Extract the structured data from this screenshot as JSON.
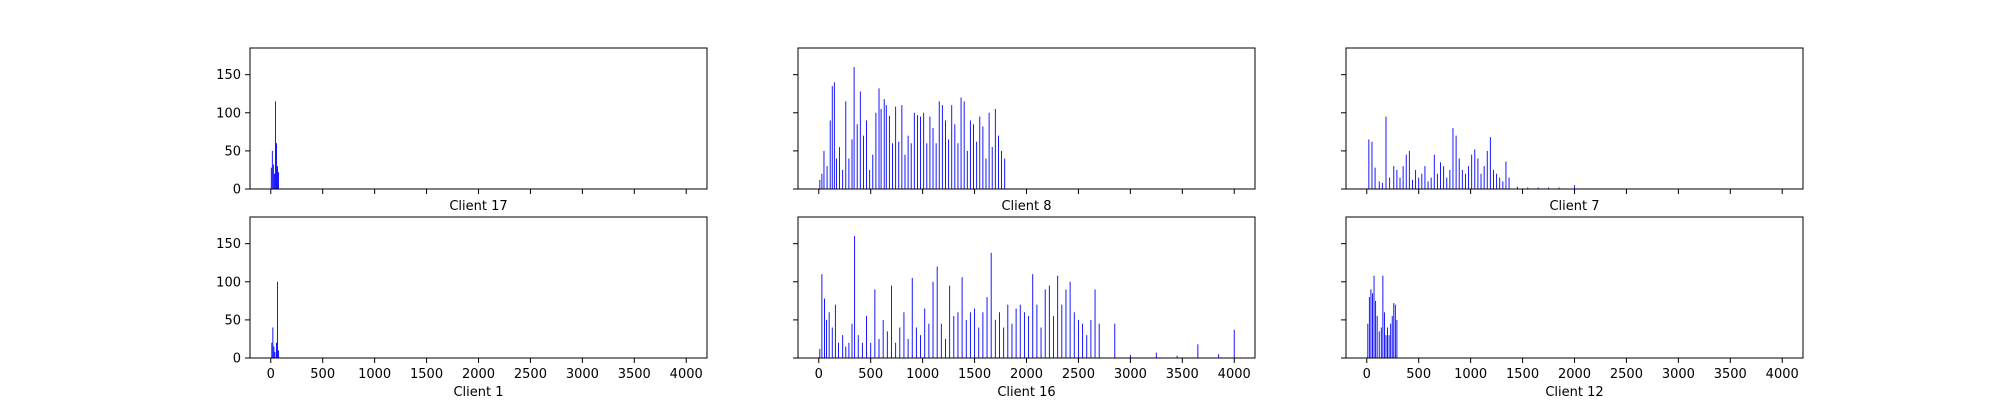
{
  "chart_data": [
    {
      "type": "bar",
      "title": "",
      "xlabel": "Client 17",
      "xlim": [
        -200,
        4200
      ],
      "ylim": [
        0,
        185
      ],
      "grid": false,
      "x_ticks": [
        0,
        500,
        1000,
        1500,
        2000,
        2500,
        3000,
        3500,
        4000
      ],
      "y_ticks": [
        0,
        50,
        100,
        150
      ],
      "bar_color": "#0000ff",
      "bars": [
        [
          5,
          28
        ],
        [
          15,
          50
        ],
        [
          25,
          32
        ],
        [
          35,
          20
        ],
        [
          45,
          115
        ],
        [
          55,
          60
        ],
        [
          65,
          30
        ],
        [
          75,
          22
        ]
      ]
    },
    {
      "type": "bar",
      "title": "",
      "xlabel": "Client 8",
      "xlim": [
        -200,
        4200
      ],
      "ylim": [
        0,
        185
      ],
      "grid": false,
      "x_ticks": [
        0,
        500,
        1000,
        1500,
        2000,
        2500,
        3000,
        3500,
        4000
      ],
      "y_ticks": [
        0,
        50,
        100,
        150
      ],
      "bar_color": "#0000ff",
      "bars": [
        [
          10,
          12
        ],
        [
          30,
          20
        ],
        [
          50,
          50
        ],
        [
          80,
          30
        ],
        [
          110,
          90
        ],
        [
          130,
          135
        ],
        [
          150,
          140
        ],
        [
          170,
          40
        ],
        [
          200,
          55
        ],
        [
          230,
          25
        ],
        [
          260,
          115
        ],
        [
          290,
          40
        ],
        [
          320,
          65
        ],
        [
          340,
          160
        ],
        [
          370,
          85
        ],
        [
          400,
          128
        ],
        [
          430,
          70
        ],
        [
          460,
          90
        ],
        [
          490,
          25
        ],
        [
          520,
          45
        ],
        [
          550,
          100
        ],
        [
          580,
          132
        ],
        [
          600,
          105
        ],
        [
          630,
          118
        ],
        [
          650,
          110
        ],
        [
          680,
          96
        ],
        [
          710,
          60
        ],
        [
          740,
          108
        ],
        [
          770,
          62
        ],
        [
          800,
          110
        ],
        [
          830,
          45
        ],
        [
          860,
          70
        ],
        [
          890,
          60
        ],
        [
          920,
          100
        ],
        [
          950,
          97
        ],
        [
          980,
          95
        ],
        [
          1010,
          100
        ],
        [
          1040,
          60
        ],
        [
          1070,
          95
        ],
        [
          1100,
          80
        ],
        [
          1130,
          60
        ],
        [
          1160,
          115
        ],
        [
          1190,
          110
        ],
        [
          1220,
          90
        ],
        [
          1250,
          65
        ],
        [
          1280,
          110
        ],
        [
          1310,
          85
        ],
        [
          1340,
          60
        ],
        [
          1370,
          120
        ],
        [
          1400,
          115
        ],
        [
          1430,
          50
        ],
        [
          1460,
          90
        ],
        [
          1490,
          85
        ],
        [
          1520,
          62
        ],
        [
          1550,
          95
        ],
        [
          1580,
          82
        ],
        [
          1610,
          40
        ],
        [
          1640,
          100
        ],
        [
          1670,
          55
        ],
        [
          1700,
          105
        ],
        [
          1730,
          70
        ],
        [
          1760,
          50
        ],
        [
          1790,
          40
        ]
      ]
    },
    {
      "type": "bar",
      "title": "",
      "xlabel": "Client 7",
      "xlim": [
        -200,
        4200
      ],
      "ylim": [
        0,
        185
      ],
      "grid": false,
      "x_ticks": [
        0,
        500,
        1000,
        1500,
        2000,
        2500,
        3000,
        3500,
        4000
      ],
      "y_ticks": [
        0,
        50,
        100,
        150
      ],
      "bar_color": "#0000ff",
      "bars": [
        [
          20,
          65
        ],
        [
          50,
          62
        ],
        [
          80,
          28
        ],
        [
          120,
          10
        ],
        [
          150,
          8
        ],
        [
          185,
          95
        ],
        [
          220,
          15
        ],
        [
          260,
          30
        ],
        [
          290,
          25
        ],
        [
          320,
          15
        ],
        [
          350,
          30
        ],
        [
          380,
          45
        ],
        [
          410,
          50
        ],
        [
          440,
          12
        ],
        [
          470,
          25
        ],
        [
          500,
          15
        ],
        [
          530,
          20
        ],
        [
          560,
          30
        ],
        [
          590,
          10
        ],
        [
          620,
          15
        ],
        [
          650,
          45
        ],
        [
          680,
          20
        ],
        [
          710,
          35
        ],
        [
          740,
          30
        ],
        [
          770,
          15
        ],
        [
          800,
          25
        ],
        [
          830,
          80
        ],
        [
          860,
          70
        ],
        [
          890,
          40
        ],
        [
          920,
          25
        ],
        [
          950,
          20
        ],
        [
          980,
          30
        ],
        [
          1010,
          45
        ],
        [
          1040,
          52
        ],
        [
          1070,
          40
        ],
        [
          1100,
          20
        ],
        [
          1130,
          30
        ],
        [
          1160,
          50
        ],
        [
          1190,
          68
        ],
        [
          1220,
          25
        ],
        [
          1250,
          20
        ],
        [
          1280,
          15
        ],
        [
          1310,
          10
        ],
        [
          1340,
          36
        ],
        [
          1370,
          15
        ],
        [
          1450,
          3
        ],
        [
          1550,
          2
        ],
        [
          1650,
          2
        ],
        [
          1750,
          2
        ],
        [
          1850,
          2
        ],
        [
          2000,
          5
        ]
      ]
    },
    {
      "type": "bar",
      "title": "",
      "xlabel": "Client 1",
      "xlim": [
        -200,
        4200
      ],
      "ylim": [
        0,
        185
      ],
      "grid": false,
      "x_ticks": [
        0,
        500,
        1000,
        1500,
        2000,
        2500,
        3000,
        3500,
        4000
      ],
      "y_ticks": [
        0,
        50,
        100,
        150
      ],
      "bar_color": "#0000ff",
      "bars": [
        [
          10,
          20
        ],
        [
          20,
          40
        ],
        [
          30,
          15
        ],
        [
          40,
          8
        ],
        [
          55,
          20
        ],
        [
          65,
          100
        ],
        [
          75,
          10
        ]
      ]
    },
    {
      "type": "bar",
      "title": "",
      "xlabel": "Client 16",
      "xlim": [
        -200,
        4200
      ],
      "ylim": [
        0,
        185
      ],
      "grid": false,
      "x_ticks": [
        0,
        500,
        1000,
        1500,
        2000,
        2500,
        3000,
        3500,
        4000
      ],
      "y_ticks": [
        0,
        50,
        100,
        150
      ],
      "bar_color": "#0000ff",
      "bars": [
        [
          10,
          12
        ],
        [
          30,
          110
        ],
        [
          55,
          78
        ],
        [
          75,
          50
        ],
        [
          100,
          60
        ],
        [
          130,
          40
        ],
        [
          160,
          70
        ],
        [
          190,
          20
        ],
        [
          230,
          30
        ],
        [
          260,
          15
        ],
        [
          290,
          20
        ],
        [
          320,
          45
        ],
        [
          345,
          160
        ],
        [
          380,
          30
        ],
        [
          420,
          20
        ],
        [
          460,
          55
        ],
        [
          500,
          20
        ],
        [
          540,
          90
        ],
        [
          580,
          25
        ],
        [
          620,
          50
        ],
        [
          660,
          35
        ],
        [
          700,
          95
        ],
        [
          740,
          20
        ],
        [
          780,
          40
        ],
        [
          820,
          60
        ],
        [
          860,
          25
        ],
        [
          900,
          105
        ],
        [
          940,
          40
        ],
        [
          980,
          30
        ],
        [
          1020,
          65
        ],
        [
          1060,
          45
        ],
        [
          1100,
          100
        ],
        [
          1140,
          120
        ],
        [
          1180,
          45
        ],
        [
          1220,
          25
        ],
        [
          1260,
          95
        ],
        [
          1300,
          55
        ],
        [
          1340,
          60
        ],
        [
          1380,
          106
        ],
        [
          1420,
          50
        ],
        [
          1460,
          60
        ],
        [
          1500,
          65
        ],
        [
          1540,
          40
        ],
        [
          1580,
          60
        ],
        [
          1620,
          80
        ],
        [
          1660,
          138
        ],
        [
          1700,
          50
        ],
        [
          1740,
          60
        ],
        [
          1780,
          40
        ],
        [
          1820,
          70
        ],
        [
          1860,
          45
        ],
        [
          1900,
          65
        ],
        [
          1940,
          70
        ],
        [
          1980,
          60
        ],
        [
          2020,
          55
        ],
        [
          2060,
          110
        ],
        [
          2100,
          70
        ],
        [
          2140,
          40
        ],
        [
          2180,
          90
        ],
        [
          2220,
          95
        ],
        [
          2260,
          55
        ],
        [
          2300,
          108
        ],
        [
          2340,
          70
        ],
        [
          2380,
          90
        ],
        [
          2420,
          100
        ],
        [
          2460,
          60
        ],
        [
          2500,
          50
        ],
        [
          2540,
          45
        ],
        [
          2580,
          30
        ],
        [
          2620,
          50
        ],
        [
          2660,
          90
        ],
        [
          2700,
          45
        ],
        [
          2850,
          45
        ],
        [
          3000,
          4
        ],
        [
          3250,
          7
        ],
        [
          3450,
          3
        ],
        [
          3650,
          18
        ],
        [
          3850,
          5
        ],
        [
          4000,
          37
        ]
      ]
    },
    {
      "type": "bar",
      "title": "",
      "xlabel": "Client 12",
      "xlim": [
        -200,
        4200
      ],
      "ylim": [
        0,
        185
      ],
      "grid": false,
      "x_ticks": [
        0,
        500,
        1000,
        1500,
        2000,
        2500,
        3000,
        3500,
        4000
      ],
      "y_ticks": [
        0,
        50,
        100,
        150
      ],
      "bar_color": "#0000ff",
      "bars": [
        [
          10,
          45
        ],
        [
          25,
          80
        ],
        [
          40,
          90
        ],
        [
          55,
          85
        ],
        [
          70,
          108
        ],
        [
          85,
          75
        ],
        [
          100,
          55
        ],
        [
          120,
          35
        ],
        [
          140,
          40
        ],
        [
          155,
          108
        ],
        [
          170,
          60
        ],
        [
          185,
          30
        ],
        [
          200,
          40
        ],
        [
          215,
          30
        ],
        [
          230,
          45
        ],
        [
          245,
          55
        ],
        [
          260,
          72
        ],
        [
          275,
          70
        ],
        [
          290,
          50
        ]
      ]
    }
  ]
}
